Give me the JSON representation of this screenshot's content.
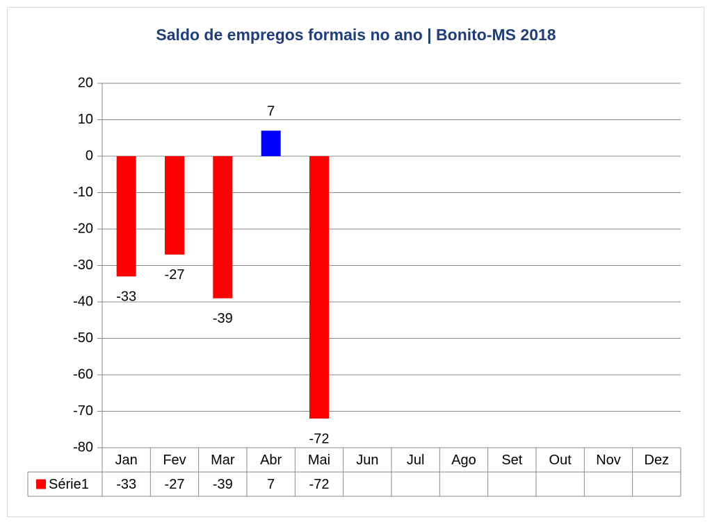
{
  "chart_data": {
    "type": "bar",
    "title": "Saldo de empregos formais no ano | Bonito-MS 2018",
    "categories": [
      "Jan",
      "Fev",
      "Mar",
      "Abr",
      "Mai",
      "Jun",
      "Jul",
      "Ago",
      "Set",
      "Out",
      "Nov",
      "Dez"
    ],
    "series": [
      {
        "name": "Série1",
        "color": "#ff0000",
        "positive_color": "#0000ff",
        "values": [
          -33,
          -27,
          -39,
          7,
          -72,
          null,
          null,
          null,
          null,
          null,
          null,
          null
        ]
      }
    ],
    "ylim": [
      -80,
      20
    ],
    "yticks": [
      -80,
      -70,
      -60,
      -50,
      -40,
      -30,
      -20,
      -10,
      0,
      10,
      20
    ],
    "grid": true,
    "data_table": true
  }
}
